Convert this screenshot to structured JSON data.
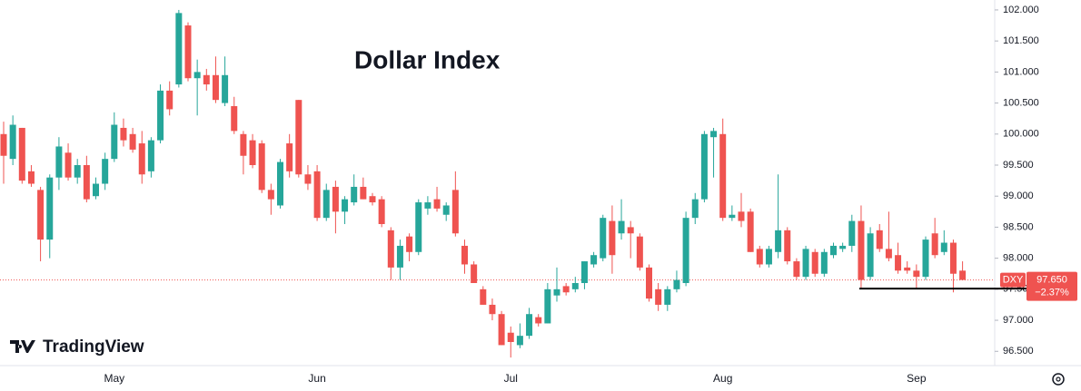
{
  "chart_data": {
    "type": "candlestick",
    "title": "Dollar Index",
    "brand": "TradingView",
    "symbol": "DXY",
    "last_price": 97.65,
    "last_price_label": "97.650",
    "change_label": "−2.37%",
    "support_line": 97.51,
    "up_color": "#26a69a",
    "down_color": "#ef5350",
    "grid": false,
    "categories": [
      null,
      null,
      null,
      null,
      null,
      null,
      null,
      null,
      null,
      null,
      null,
      null,
      "May",
      null,
      null,
      null,
      null,
      null,
      null,
      null,
      null,
      null,
      null,
      null,
      null,
      null,
      null,
      null,
      null,
      null,
      null,
      null,
      null,
      null,
      "Jun",
      null,
      null,
      null,
      null,
      null,
      null,
      null,
      null,
      null,
      null,
      null,
      null,
      null,
      null,
      null,
      null,
      null,
      null,
      null,
      null,
      "Jul",
      null,
      null,
      null,
      null,
      null,
      null,
      null,
      null,
      null,
      null,
      null,
      null,
      null,
      null,
      null,
      null,
      null,
      null,
      null,
      null,
      null,
      null,
      "Aug",
      null,
      null,
      null,
      null,
      null,
      null,
      null,
      null,
      null,
      null,
      null,
      null,
      null,
      null,
      null,
      null,
      null,
      null,
      null,
      null,
      "Sep",
      null,
      null,
      null,
      null,
      null
    ],
    "open": [
      100.0,
      99.6,
      100.1,
      99.4,
      99.1,
      98.3,
      99.3,
      99.7,
      99.3,
      99.5,
      99.0,
      99.2,
      99.6,
      100.1,
      100.0,
      99.85,
      99.4,
      99.9,
      100.7,
      100.8,
      101.75,
      100.9,
      100.95,
      100.95,
      100.5,
      100.45,
      100.0,
      99.9,
      99.85,
      99.1,
      98.85,
      99.85,
      100.55,
      99.35,
      99.4,
      98.65,
      99.15,
      98.75,
      98.9,
      99.15,
      99.0,
      98.95,
      98.45,
      97.85,
      98.35,
      98.1,
      98.8,
      98.95,
      98.7,
      99.1,
      98.2,
      97.9,
      97.5,
      97.25,
      97.1,
      96.8,
      96.6,
      96.75,
      97.05,
      96.95,
      97.4,
      97.55,
      97.5,
      97.6,
      97.9,
      98.0,
      98.6,
      98.4,
      98.5,
      98.35,
      97.85,
      97.5,
      97.25,
      97.5,
      97.6,
      98.65,
      98.95,
      99.95,
      100.0,
      98.65,
      98.75,
      98.75,
      98.15,
      97.9,
      98.1,
      98.45,
      97.95,
      97.7,
      98.1,
      97.75,
      98.05,
      98.15,
      98.2,
      98.6,
      97.7,
      98.45,
      98.15,
      98.05,
      97.85,
      97.8,
      97.7,
      98.4,
      98.1,
      98.25,
      97.8
    ],
    "high": [
      100.2,
      100.3,
      100.1,
      99.5,
      99.15,
      99.35,
      99.95,
      99.85,
      99.6,
      99.65,
      99.3,
      99.7,
      100.35,
      100.25,
      100.1,
      100.05,
      99.95,
      100.8,
      100.85,
      102.0,
      101.8,
      101.2,
      101.05,
      101.25,
      101.25,
      100.6,
      100.05,
      100.0,
      99.9,
      99.2,
      99.6,
      100.0,
      100.55,
      99.5,
      99.5,
      99.2,
      99.25,
      99.0,
      99.35,
      99.3,
      99.05,
      99.0,
      98.5,
      98.3,
      98.4,
      98.95,
      99.0,
      99.15,
      98.9,
      99.4,
      98.3,
      97.95,
      97.55,
      97.35,
      97.15,
      96.9,
      96.95,
      97.2,
      97.1,
      97.6,
      97.85,
      97.6,
      97.7,
      97.95,
      98.1,
      98.7,
      98.85,
      98.95,
      98.6,
      98.4,
      97.9,
      97.6,
      97.55,
      97.8,
      98.75,
      99.05,
      100.05,
      100.1,
      100.25,
      98.85,
      99.05,
      98.8,
      98.2,
      98.2,
      99.35,
      98.5,
      98.0,
      98.2,
      98.15,
      98.15,
      98.25,
      98.25,
      98.7,
      98.85,
      98.5,
      98.55,
      98.75,
      98.25,
      97.95,
      97.9,
      98.35,
      98.65,
      98.45,
      98.3,
      97.95
    ],
    "low": [
      99.2,
      99.5,
      99.2,
      99.15,
      97.95,
      98.0,
      99.1,
      99.25,
      99.2,
      98.9,
      98.95,
      99.1,
      99.55,
      99.8,
      99.7,
      99.2,
      99.3,
      99.85,
      100.3,
      100.75,
      100.85,
      100.3,
      100.7,
      100.5,
      100.45,
      100.0,
      99.35,
      99.45,
      99.05,
      98.7,
      98.8,
      99.3,
      99.3,
      99.1,
      98.6,
      98.6,
      98.4,
      98.55,
      98.85,
      98.95,
      98.85,
      98.5,
      97.65,
      97.65,
      97.95,
      98.05,
      98.7,
      98.75,
      98.6,
      98.35,
      97.75,
      97.6,
      97.25,
      97.0,
      96.6,
      96.4,
      96.55,
      96.7,
      96.9,
      96.95,
      97.3,
      97.4,
      97.45,
      97.5,
      97.85,
      97.95,
      97.75,
      98.3,
      98.0,
      97.8,
      97.3,
      97.15,
      97.15,
      97.45,
      97.55,
      98.55,
      98.9,
      99.3,
      98.6,
      98.6,
      98.5,
      98.1,
      97.85,
      97.85,
      98.0,
      97.9,
      97.65,
      97.65,
      97.7,
      97.7,
      98.0,
      98.1,
      98.1,
      97.5,
      97.65,
      98.1,
      97.95,
      97.75,
      97.75,
      97.5,
      97.65,
      98.0,
      98.05,
      97.45,
      97.65
    ],
    "close": [
      99.65,
      100.15,
      99.25,
      99.2,
      98.3,
      99.3,
      99.8,
      99.3,
      99.5,
      98.95,
      99.2,
      99.6,
      100.15,
      99.9,
      99.75,
      99.35,
      99.9,
      100.7,
      100.4,
      101.95,
      100.9,
      101.0,
      100.8,
      100.55,
      100.95,
      100.05,
      99.65,
      99.5,
      99.1,
      98.95,
      99.55,
      99.4,
      99.35,
      99.2,
      98.65,
      99.1,
      98.75,
      98.95,
      99.15,
      98.95,
      98.9,
      98.55,
      97.85,
      98.2,
      98.1,
      98.9,
      98.9,
      98.8,
      98.85,
      98.4,
      97.9,
      97.6,
      97.25,
      97.1,
      96.6,
      96.65,
      96.75,
      97.1,
      96.95,
      97.5,
      97.5,
      97.45,
      97.6,
      97.95,
      98.05,
      98.65,
      98.05,
      98.6,
      98.4,
      97.85,
      97.35,
      97.25,
      97.5,
      97.65,
      98.65,
      98.95,
      100.0,
      100.05,
      98.65,
      98.7,
      98.6,
      98.1,
      97.9,
      98.15,
      98.45,
      97.95,
      97.7,
      98.15,
      97.75,
      98.1,
      98.2,
      98.2,
      98.6,
      97.65,
      98.4,
      98.15,
      98.0,
      97.8,
      97.8,
      97.7,
      98.3,
      98.05,
      98.25,
      97.75,
      97.65
    ],
    "ylim": [
      96.27,
      102.16
    ],
    "yticks": [
      {
        "value": 96.5,
        "label": "96.500"
      },
      {
        "value": 97,
        "label": "97.000"
      },
      {
        "value": 97.5,
        "label": "97.500"
      },
      {
        "value": 98,
        "label": "98.000"
      },
      {
        "value": 98.5,
        "label": "98.500"
      },
      {
        "value": 99,
        "label": "99.000"
      },
      {
        "value": 99.5,
        "label": "99.500"
      },
      {
        "value": 100,
        "label": "100.000"
      },
      {
        "value": 100.5,
        "label": "100.500"
      },
      {
        "value": 101,
        "label": "101.000"
      },
      {
        "value": 101.5,
        "label": "101.500"
      },
      {
        "value": 102,
        "label": "102.000"
      }
    ]
  }
}
